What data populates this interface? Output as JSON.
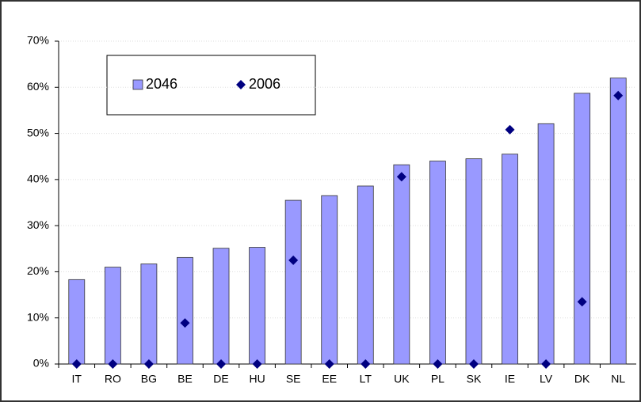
{
  "chart_data": {
    "type": "bar",
    "categories": [
      "IT",
      "RO",
      "BG",
      "BE",
      "DE",
      "HU",
      "SE",
      "EE",
      "LT",
      "UK",
      "PL",
      "SK",
      "IE",
      "LV",
      "DK",
      "NL"
    ],
    "series": [
      {
        "name": "2046",
        "type": "bar",
        "color": "#9999ff",
        "values": [
          18.3,
          21,
          21.7,
          23.1,
          25.1,
          25.3,
          35.5,
          36.5,
          38.6,
          43.2,
          44,
          44.5,
          45.5,
          52.1,
          58.7,
          62
        ]
      },
      {
        "name": "2006",
        "type": "scatter",
        "color": "#000080",
        "values": [
          0,
          0,
          0,
          8.9,
          0,
          0,
          22.5,
          0,
          0,
          40.6,
          0,
          0,
          50.8,
          0,
          13.5,
          58.2
        ]
      }
    ],
    "ylim": [
      0,
      70
    ],
    "yticks": [
      {
        "value": 0,
        "label": "0%"
      },
      {
        "value": 10,
        "label": "10%"
      },
      {
        "value": 20,
        "label": "20%"
      },
      {
        "value": 30,
        "label": "30%"
      },
      {
        "value": 40,
        "label": "40%"
      },
      {
        "value": 50,
        "label": "50%"
      },
      {
        "value": 60,
        "label": "60%"
      },
      {
        "value": 70,
        "label": "70%"
      }
    ],
    "grid": true
  }
}
